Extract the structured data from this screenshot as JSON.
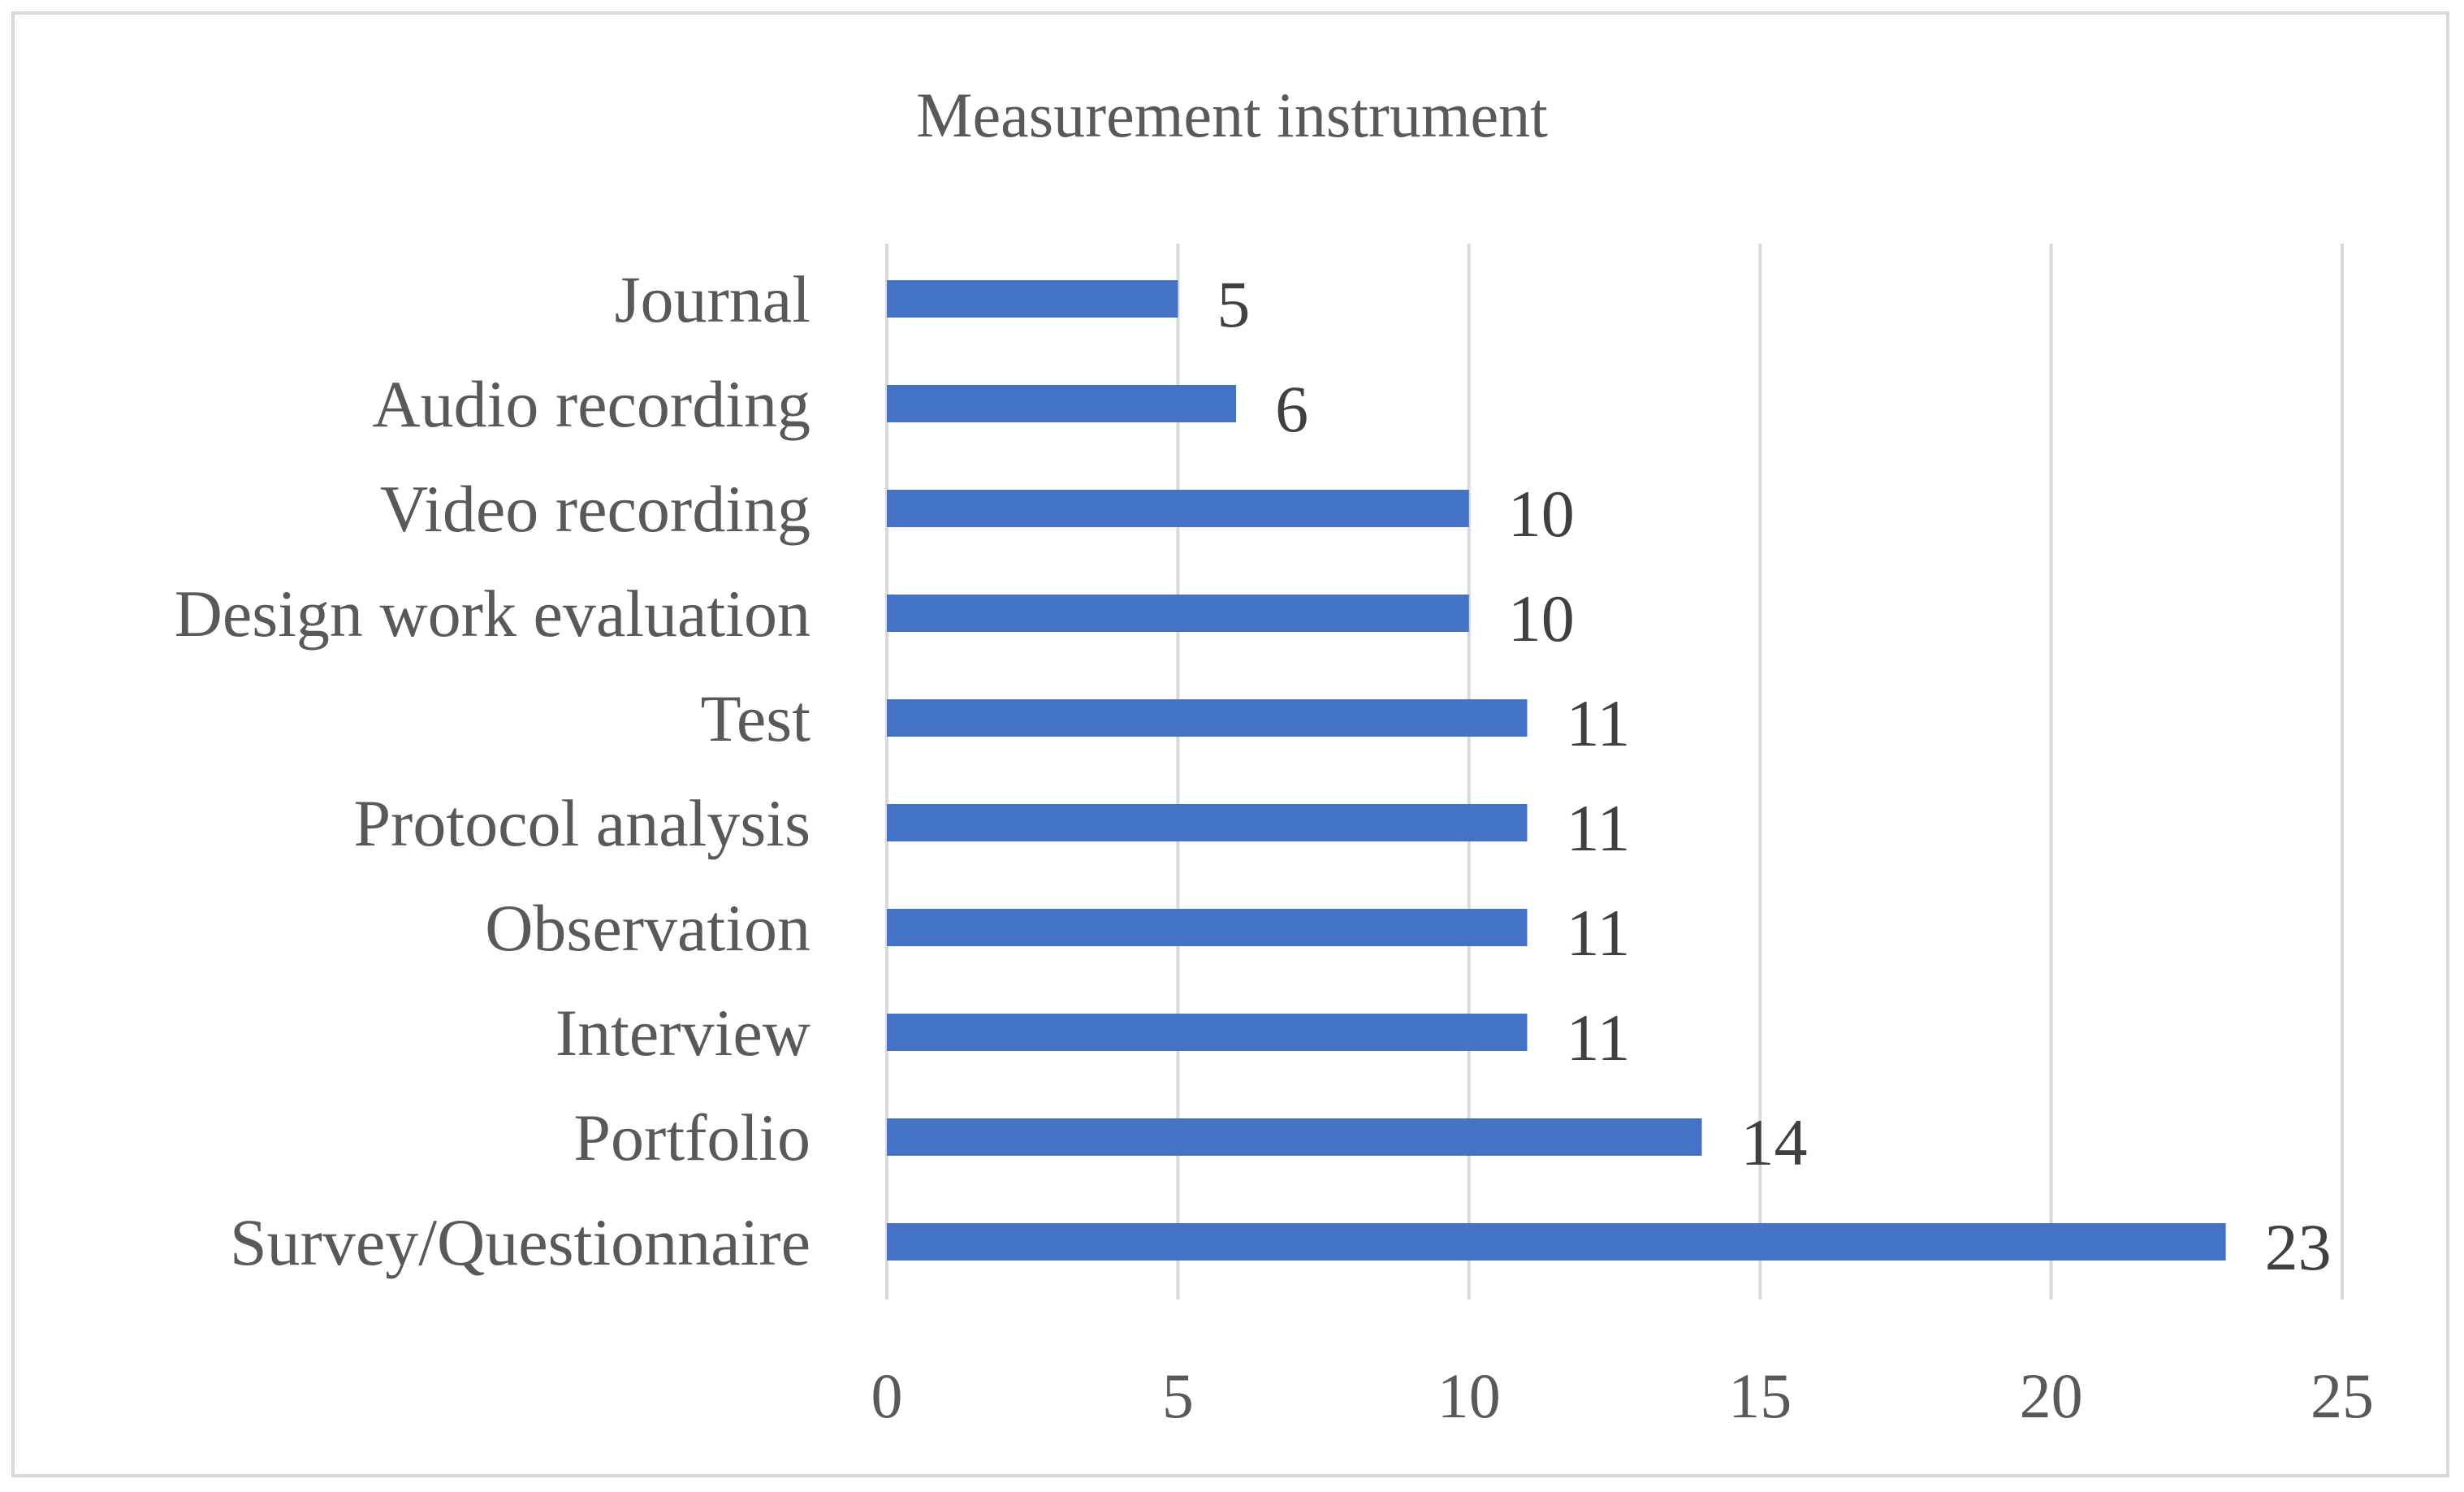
{
  "chart_data": {
    "type": "bar",
    "orientation": "horizontal",
    "title": "Measurement instrument",
    "xlabel": "",
    "ylabel": "",
    "categories": [
      "Journal",
      "Audio recording",
      "Video recording",
      "Design work evaluation",
      "Test",
      "Protocol analysis",
      "Observation",
      "Interview",
      "Portfolio",
      "Survey/Questionnaire"
    ],
    "values": [
      5,
      6,
      10,
      10,
      11,
      11,
      11,
      11,
      14,
      23
    ],
    "xlim": [
      0,
      25
    ],
    "xticks": [
      0,
      5,
      10,
      15,
      20,
      25
    ],
    "xtick_labels": [
      "0",
      "5",
      "10",
      "15",
      "20",
      "25"
    ],
    "grid": "vertical",
    "legend": "none",
    "data_labels": true,
    "bar_color": "#4472c4",
    "grid_color": "#d9d9d9"
  }
}
